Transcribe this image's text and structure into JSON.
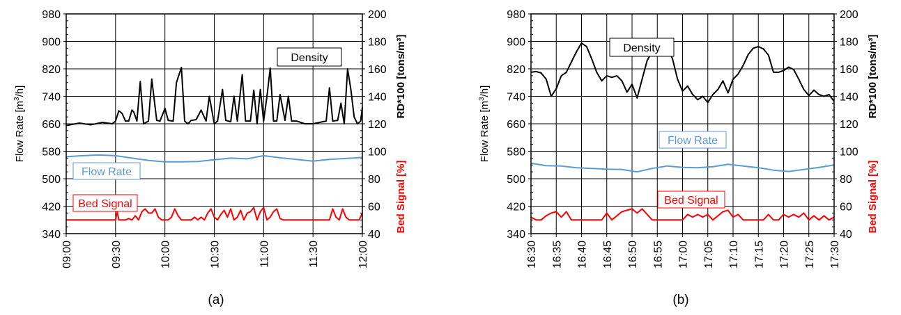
{
  "chart_data": [
    {
      "type": "line",
      "panel_label": "(a)",
      "xlabel": "",
      "ylabel_left": "Flow Rate [m³/h]",
      "ylabel_right_upper": "RD*100  [tons/m³]",
      "ylabel_right_lower": "Bed Signal  [%]",
      "ylim_left": [
        340,
        980
      ],
      "ylim_right": [
        40,
        200
      ],
      "yticks_left": [
        "340",
        "420",
        "500",
        "580",
        "660",
        "740",
        "820",
        "900",
        "980"
      ],
      "yticks_right": [
        "40",
        "60",
        "80",
        "100",
        "120",
        "140",
        "160",
        "180",
        "200"
      ],
      "xticks": [
        "09:00",
        "09:30",
        "10:00",
        "10:30",
        "11:00",
        "11:30",
        "12:00"
      ],
      "x_range_minutes": [
        0,
        180
      ],
      "grid": true,
      "series": [
        {
          "name": "Density",
          "axis": "left",
          "color": "#000000",
          "x": [
            0,
            8,
            15,
            22,
            28,
            30,
            32,
            34,
            36,
            38,
            40,
            41,
            43,
            45,
            47,
            50,
            52,
            55,
            57,
            60,
            62,
            65,
            67,
            70,
            72,
            74,
            76,
            79,
            82,
            85,
            87,
            90,
            92,
            95,
            97,
            100,
            102,
            104,
            107,
            109,
            112,
            114,
            116,
            118,
            120,
            122,
            124,
            126,
            128,
            130,
            133,
            135,
            137,
            140,
            145,
            150,
            155,
            158,
            160,
            162,
            165,
            167,
            169,
            171,
            173,
            175,
            177,
            179,
            180
          ],
          "values": [
            655,
            662,
            657,
            664,
            660,
            668,
            698,
            690,
            668,
            668,
            700,
            695,
            668,
            783,
            660,
            668,
            790,
            670,
            668,
            705,
            670,
            668,
            780,
            824,
            668,
            660,
            670,
            672,
            700,
            668,
            740,
            660,
            668,
            760,
            670,
            666,
            740,
            668,
            803,
            668,
            668,
            758,
            660,
            760,
            668,
            740,
            822,
            668,
            668,
            745,
            670,
            740,
            668,
            668,
            660,
            660,
            665,
            668,
            765,
            668,
            670,
            720,
            660,
            820,
            760,
            680,
            660,
            668,
            708
          ]
        },
        {
          "name": "Flow Rate",
          "axis": "left",
          "color": "#5b9bd5",
          "x": [
            0,
            10,
            20,
            30,
            40,
            50,
            60,
            70,
            80,
            90,
            100,
            110,
            120,
            130,
            140,
            150,
            160,
            170,
            180
          ],
          "values": [
            564,
            567,
            569,
            567,
            560,
            553,
            549,
            549,
            550,
            555,
            560,
            558,
            567,
            561,
            556,
            551,
            556,
            559,
            562
          ]
        },
        {
          "name": "Bed Signal",
          "axis": "right",
          "color": "#ff0000",
          "x": [
            0,
            20,
            30,
            31,
            32,
            34,
            36,
            38,
            40,
            42,
            44,
            46,
            48,
            50,
            52,
            54,
            56,
            58,
            60,
            62,
            64,
            66,
            68,
            70,
            72,
            74,
            76,
            78,
            80,
            82,
            84,
            86,
            88,
            90,
            92,
            94,
            96,
            98,
            100,
            102,
            104,
            106,
            108,
            110,
            112,
            114,
            116,
            118,
            120,
            122,
            124,
            126,
            128,
            130,
            132,
            134,
            140,
            150,
            160,
            162,
            164,
            166,
            168,
            170,
            172,
            174,
            176,
            178,
            180
          ],
          "values": [
            50,
            50,
            50,
            56,
            50,
            50,
            50,
            51,
            50,
            53,
            50,
            56,
            58,
            55,
            55,
            58,
            52,
            50,
            50,
            50,
            52,
            58,
            53,
            50,
            50,
            50,
            50,
            52,
            50,
            52,
            50,
            55,
            58,
            52,
            50,
            54,
            57,
            52,
            58,
            50,
            52,
            57,
            50,
            55,
            56,
            59,
            50,
            56,
            59,
            50,
            52,
            56,
            58,
            51,
            50,
            50,
            50,
            50,
            50,
            58,
            52,
            50,
            58,
            52,
            50,
            50,
            50,
            50,
            55
          ]
        }
      ],
      "annotations": [
        "Density",
        "Flow Rate",
        "Bed Signal"
      ]
    },
    {
      "type": "line",
      "panel_label": "(b)",
      "xlabel": "",
      "ylabel_left": "Flow Rate [m³/h]",
      "ylabel_right_upper": "RD*100  [tons/m³]",
      "ylabel_right_lower": "Bed Signal  [%]",
      "ylim_left": [
        340,
        980
      ],
      "ylim_right": [
        40,
        200
      ],
      "yticks_left": [
        "340",
        "420",
        "500",
        "580",
        "660",
        "740",
        "820",
        "900",
        "980"
      ],
      "yticks_right": [
        "40",
        "60",
        "80",
        "100",
        "120",
        "140",
        "160",
        "180",
        "200"
      ],
      "xticks": [
        "16:30",
        "16:35",
        "16:40",
        "16:45",
        "16:50",
        "16:55",
        "17:00",
        "17:05",
        "17:10",
        "17:15",
        "17:20",
        "17:25",
        "17:30"
      ],
      "x_range_minutes": [
        0,
        60
      ],
      "grid": true,
      "series": [
        {
          "name": "Density",
          "axis": "left",
          "color": "#000000",
          "x": [
            0,
            1,
            2,
            3,
            4,
            5,
            6,
            7,
            8,
            9,
            10,
            11,
            12,
            13,
            14,
            15,
            16,
            17,
            18,
            19,
            20,
            21,
            22,
            23,
            24,
            25,
            26,
            27,
            28,
            29,
            30,
            31,
            32,
            33,
            34,
            35,
            36,
            37,
            38,
            39,
            40,
            41,
            42,
            43,
            44,
            45,
            46,
            47,
            48,
            49,
            50,
            51,
            52,
            53,
            54,
            55,
            56,
            57,
            58,
            59,
            60
          ],
          "values": [
            810,
            812,
            808,
            790,
            740,
            762,
            800,
            810,
            840,
            870,
            895,
            885,
            850,
            810,
            785,
            800,
            795,
            800,
            785,
            752,
            775,
            735,
            790,
            845,
            870,
            875,
            872,
            880,
            850,
            790,
            755,
            770,
            745,
            730,
            740,
            722,
            745,
            760,
            785,
            750,
            790,
            805,
            830,
            862,
            880,
            885,
            878,
            860,
            810,
            810,
            815,
            825,
            818,
            790,
            760,
            742,
            758,
            745,
            740,
            745,
            725
          ]
        },
        {
          "name": "Flow Rate",
          "axis": "left",
          "color": "#5b9bd5",
          "x": [
            0,
            3,
            6,
            9,
            12,
            15,
            18,
            21,
            24,
            27,
            30,
            33,
            36,
            39,
            42,
            45,
            48,
            51,
            54,
            57,
            60
          ],
          "values": [
            545,
            538,
            537,
            532,
            530,
            528,
            527,
            520,
            530,
            537,
            533,
            532,
            535,
            542,
            537,
            532,
            525,
            521,
            527,
            533,
            540
          ]
        },
        {
          "name": "Bed Signal",
          "axis": "right",
          "color": "#ff0000",
          "x": [
            0,
            1,
            2,
            3,
            4,
            5,
            6,
            7,
            8,
            10,
            12,
            14,
            15,
            16,
            17,
            18,
            19,
            20,
            21,
            22,
            24,
            26,
            28,
            30,
            31,
            32,
            33,
            34,
            35,
            36,
            37,
            38,
            39,
            40,
            41,
            42,
            44,
            46,
            47,
            48,
            49,
            50,
            51,
            52,
            53,
            54,
            55,
            56,
            57,
            58,
            59,
            60
          ],
          "values": [
            52,
            50,
            50,
            53,
            55,
            56,
            52,
            56,
            50,
            50,
            50,
            50,
            55,
            50,
            53,
            56,
            57,
            58,
            55,
            58,
            50,
            50,
            50,
            50,
            54,
            52,
            54,
            52,
            54,
            50,
            53,
            56,
            57,
            52,
            54,
            50,
            50,
            50,
            54,
            50,
            50,
            54,
            52,
            54,
            52,
            55,
            50,
            53,
            50,
            53,
            50,
            52
          ]
        }
      ],
      "annotations": [
        "Density",
        "Flow Rate",
        "Bed Signal"
      ]
    }
  ]
}
